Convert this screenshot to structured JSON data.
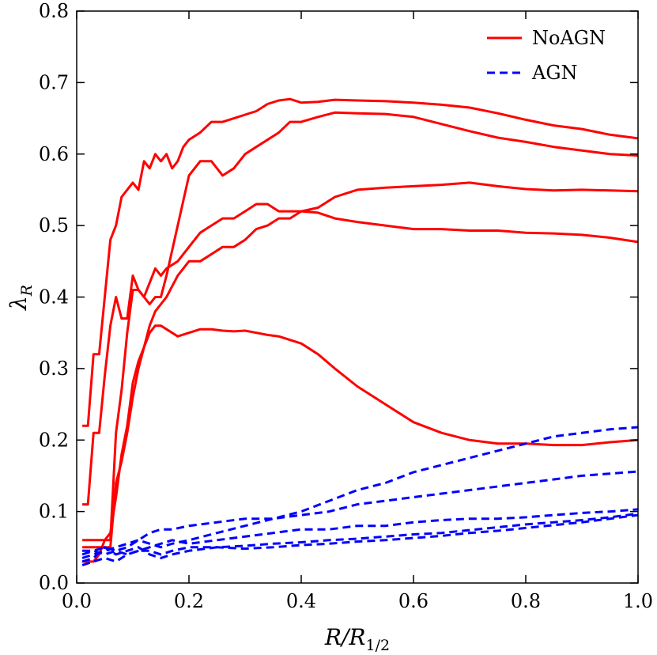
{
  "chart_data": {
    "type": "line",
    "title": "",
    "xlabel": "R/R_{1/2}",
    "xlabel_main": "R/R",
    "xlabel_sub": "1/2",
    "ylabel": "λ_R",
    "ylabel_main": "λ",
    "ylabel_sub": "R",
    "xlim": [
      0.0,
      1.0
    ],
    "ylim": [
      0.0,
      0.8
    ],
    "xticks": [
      0.0,
      0.2,
      0.4,
      0.6,
      0.8,
      1.0
    ],
    "xtick_labels": [
      "0.0",
      "0.2",
      "0.4",
      "0.6",
      "0.8",
      "1.0"
    ],
    "yticks": [
      0.0,
      0.1,
      0.2,
      0.3,
      0.4,
      0.5,
      0.6,
      0.7,
      0.8
    ],
    "ytick_labels": [
      "0.0",
      "0.1",
      "0.2",
      "0.3",
      "0.4",
      "0.5",
      "0.6",
      "0.7",
      "0.8"
    ],
    "grid": false,
    "legend_position": "top-right",
    "legend": [
      {
        "label": "NoAGN",
        "color": "#ff0000",
        "style": "solid"
      },
      {
        "label": "AGN",
        "color": "#0000ff",
        "style": "dashed"
      }
    ],
    "series": [
      {
        "name": "NoAGN 1",
        "group": "NoAGN",
        "color": "#ff0000",
        "dash": false,
        "x": [
          0.01,
          0.02,
          0.03,
          0.04,
          0.05,
          0.06,
          0.07,
          0.08,
          0.09,
          0.1,
          0.11,
          0.12,
          0.13,
          0.14,
          0.15,
          0.16,
          0.17,
          0.18,
          0.19,
          0.2,
          0.22,
          0.24,
          0.26,
          0.28,
          0.3,
          0.32,
          0.34,
          0.36,
          0.38,
          0.4,
          0.43,
          0.46,
          0.5,
          0.55,
          0.6,
          0.65,
          0.7,
          0.75,
          0.8,
          0.85,
          0.9,
          0.95,
          1.0
        ],
        "y": [
          0.22,
          0.22,
          0.32,
          0.32,
          0.4,
          0.48,
          0.5,
          0.54,
          0.55,
          0.56,
          0.55,
          0.59,
          0.58,
          0.6,
          0.59,
          0.6,
          0.58,
          0.59,
          0.61,
          0.62,
          0.63,
          0.645,
          0.645,
          0.65,
          0.655,
          0.66,
          0.67,
          0.675,
          0.677,
          0.672,
          0.673,
          0.676,
          0.675,
          0.674,
          0.672,
          0.669,
          0.665,
          0.657,
          0.648,
          0.64,
          0.635,
          0.627,
          0.622
        ]
      },
      {
        "name": "NoAGN 2",
        "group": "NoAGN",
        "color": "#ff0000",
        "dash": false,
        "x": [
          0.01,
          0.02,
          0.03,
          0.04,
          0.05,
          0.06,
          0.07,
          0.08,
          0.09,
          0.1,
          0.11,
          0.12,
          0.13,
          0.14,
          0.15,
          0.16,
          0.18,
          0.2,
          0.22,
          0.24,
          0.26,
          0.28,
          0.3,
          0.32,
          0.34,
          0.36,
          0.38,
          0.4,
          0.43,
          0.46,
          0.5,
          0.55,
          0.6,
          0.65,
          0.7,
          0.75,
          0.8,
          0.85,
          0.9,
          0.95,
          1.0
        ],
        "y": [
          0.11,
          0.11,
          0.21,
          0.21,
          0.29,
          0.36,
          0.4,
          0.37,
          0.37,
          0.43,
          0.41,
          0.4,
          0.39,
          0.4,
          0.4,
          0.43,
          0.5,
          0.57,
          0.59,
          0.59,
          0.57,
          0.58,
          0.6,
          0.61,
          0.62,
          0.63,
          0.645,
          0.645,
          0.652,
          0.658,
          0.657,
          0.656,
          0.652,
          0.642,
          0.632,
          0.623,
          0.617,
          0.61,
          0.605,
          0.6,
          0.598
        ]
      },
      {
        "name": "NoAGN 3",
        "group": "NoAGN",
        "color": "#ff0000",
        "dash": false,
        "x": [
          0.01,
          0.02,
          0.03,
          0.04,
          0.05,
          0.06,
          0.07,
          0.08,
          0.09,
          0.1,
          0.11,
          0.12,
          0.13,
          0.14,
          0.15,
          0.16,
          0.18,
          0.2,
          0.22,
          0.24,
          0.26,
          0.28,
          0.3,
          0.32,
          0.34,
          0.36,
          0.38,
          0.4,
          0.43,
          0.46,
          0.5,
          0.55,
          0.6,
          0.65,
          0.7,
          0.75,
          0.8,
          0.85,
          0.9,
          0.95,
          1.0
        ],
        "y": [
          0.06,
          0.06,
          0.06,
          0.06,
          0.06,
          0.06,
          0.21,
          0.27,
          0.35,
          0.41,
          0.41,
          0.4,
          0.42,
          0.44,
          0.43,
          0.44,
          0.45,
          0.47,
          0.49,
          0.5,
          0.51,
          0.51,
          0.52,
          0.53,
          0.53,
          0.52,
          0.52,
          0.52,
          0.518,
          0.51,
          0.505,
          0.5,
          0.495,
          0.495,
          0.493,
          0.493,
          0.49,
          0.489,
          0.487,
          0.483,
          0.477
        ]
      },
      {
        "name": "NoAGN 4",
        "group": "NoAGN",
        "color": "#ff0000",
        "dash": false,
        "x": [
          0.01,
          0.02,
          0.03,
          0.04,
          0.05,
          0.06,
          0.07,
          0.08,
          0.09,
          0.1,
          0.11,
          0.12,
          0.13,
          0.14,
          0.15,
          0.16,
          0.18,
          0.2,
          0.22,
          0.24,
          0.26,
          0.28,
          0.3,
          0.32,
          0.34,
          0.36,
          0.38,
          0.4,
          0.43,
          0.46,
          0.5,
          0.55,
          0.6,
          0.65,
          0.7,
          0.75,
          0.8,
          0.85,
          0.9,
          0.95,
          1.0
        ],
        "y": [
          0.05,
          0.05,
          0.05,
          0.05,
          0.05,
          0.05,
          0.14,
          0.17,
          0.21,
          0.26,
          0.3,
          0.33,
          0.36,
          0.38,
          0.39,
          0.4,
          0.43,
          0.45,
          0.45,
          0.46,
          0.47,
          0.47,
          0.48,
          0.495,
          0.5,
          0.51,
          0.51,
          0.52,
          0.525,
          0.54,
          0.55,
          0.553,
          0.555,
          0.557,
          0.56,
          0.555,
          0.551,
          0.549,
          0.55,
          0.549,
          0.548
        ]
      },
      {
        "name": "NoAGN 5",
        "group": "NoAGN",
        "color": "#ff0000",
        "dash": false,
        "x": [
          0.01,
          0.02,
          0.03,
          0.04,
          0.05,
          0.06,
          0.07,
          0.08,
          0.09,
          0.1,
          0.11,
          0.12,
          0.13,
          0.14,
          0.15,
          0.16,
          0.18,
          0.2,
          0.22,
          0.24,
          0.26,
          0.28,
          0.3,
          0.32,
          0.34,
          0.36,
          0.38,
          0.4,
          0.43,
          0.46,
          0.5,
          0.55,
          0.6,
          0.65,
          0.7,
          0.75,
          0.8,
          0.85,
          0.9,
          0.95,
          1.0
        ],
        "y": [
          0.03,
          0.03,
          0.03,
          0.04,
          0.06,
          0.07,
          0.12,
          0.18,
          0.22,
          0.28,
          0.31,
          0.33,
          0.35,
          0.36,
          0.36,
          0.355,
          0.345,
          0.35,
          0.355,
          0.355,
          0.353,
          0.352,
          0.353,
          0.35,
          0.347,
          0.345,
          0.34,
          0.335,
          0.32,
          0.3,
          0.275,
          0.25,
          0.225,
          0.21,
          0.2,
          0.195,
          0.195,
          0.193,
          0.193,
          0.197,
          0.2
        ]
      },
      {
        "name": "AGN 1",
        "group": "AGN",
        "color": "#0000ff",
        "dash": true,
        "x": [
          0.01,
          0.03,
          0.05,
          0.07,
          0.09,
          0.11,
          0.13,
          0.15,
          0.17,
          0.2,
          0.25,
          0.3,
          0.35,
          0.4,
          0.45,
          0.5,
          0.55,
          0.6,
          0.65,
          0.7,
          0.75,
          0.8,
          0.85,
          0.9,
          0.95,
          1.0
        ],
        "y": [
          0.035,
          0.04,
          0.045,
          0.05,
          0.055,
          0.06,
          0.055,
          0.05,
          0.055,
          0.06,
          0.07,
          0.08,
          0.09,
          0.1,
          0.115,
          0.13,
          0.14,
          0.155,
          0.165,
          0.175,
          0.185,
          0.195,
          0.205,
          0.21,
          0.215,
          0.218
        ]
      },
      {
        "name": "AGN 2",
        "group": "AGN",
        "color": "#0000ff",
        "dash": true,
        "x": [
          0.01,
          0.03,
          0.05,
          0.07,
          0.09,
          0.11,
          0.13,
          0.15,
          0.17,
          0.2,
          0.25,
          0.3,
          0.35,
          0.4,
          0.45,
          0.5,
          0.55,
          0.6,
          0.65,
          0.7,
          0.75,
          0.8,
          0.85,
          0.9,
          0.95,
          1.0
        ],
        "y": [
          0.04,
          0.045,
          0.04,
          0.045,
          0.05,
          0.06,
          0.07,
          0.075,
          0.075,
          0.08,
          0.085,
          0.09,
          0.09,
          0.095,
          0.1,
          0.11,
          0.115,
          0.12,
          0.125,
          0.13,
          0.135,
          0.14,
          0.145,
          0.15,
          0.153,
          0.156
        ]
      },
      {
        "name": "AGN 3",
        "group": "AGN",
        "color": "#0000ff",
        "dash": true,
        "x": [
          0.01,
          0.03,
          0.05,
          0.07,
          0.09,
          0.11,
          0.13,
          0.15,
          0.17,
          0.2,
          0.25,
          0.3,
          0.35,
          0.4,
          0.45,
          0.5,
          0.55,
          0.6,
          0.65,
          0.7,
          0.75,
          0.8,
          0.85,
          0.9,
          0.95,
          1.0
        ],
        "y": [
          0.045,
          0.045,
          0.05,
          0.045,
          0.04,
          0.045,
          0.05,
          0.055,
          0.06,
          0.055,
          0.06,
          0.065,
          0.07,
          0.075,
          0.075,
          0.08,
          0.08,
          0.085,
          0.088,
          0.09,
          0.09,
          0.092,
          0.095,
          0.098,
          0.1,
          0.103
        ]
      },
      {
        "name": "AGN 4",
        "group": "AGN",
        "color": "#0000ff",
        "dash": true,
        "x": [
          0.01,
          0.03,
          0.05,
          0.07,
          0.09,
          0.11,
          0.13,
          0.15,
          0.17,
          0.2,
          0.25,
          0.3,
          0.35,
          0.4,
          0.45,
          0.5,
          0.55,
          0.6,
          0.65,
          0.7,
          0.75,
          0.8,
          0.85,
          0.9,
          0.95,
          1.0
        ],
        "y": [
          0.03,
          0.035,
          0.05,
          0.04,
          0.045,
          0.05,
          0.04,
          0.035,
          0.04,
          0.045,
          0.05,
          0.052,
          0.055,
          0.057,
          0.06,
          0.062,
          0.065,
          0.068,
          0.07,
          0.074,
          0.078,
          0.082,
          0.085,
          0.088,
          0.092,
          0.097
        ]
      },
      {
        "name": "AGN 5",
        "group": "AGN",
        "color": "#0000ff",
        "dash": true,
        "x": [
          0.01,
          0.03,
          0.05,
          0.07,
          0.09,
          0.11,
          0.13,
          0.15,
          0.17,
          0.2,
          0.25,
          0.3,
          0.35,
          0.4,
          0.45,
          0.5,
          0.55,
          0.6,
          0.65,
          0.7,
          0.75,
          0.8,
          0.85,
          0.9,
          0.95,
          1.0
        ],
        "y": [
          0.025,
          0.03,
          0.035,
          0.03,
          0.04,
          0.045,
          0.045,
          0.04,
          0.045,
          0.05,
          0.05,
          0.048,
          0.05,
          0.053,
          0.055,
          0.058,
          0.06,
          0.063,
          0.066,
          0.07,
          0.073,
          0.077,
          0.081,
          0.085,
          0.09,
          0.095
        ]
      }
    ]
  }
}
